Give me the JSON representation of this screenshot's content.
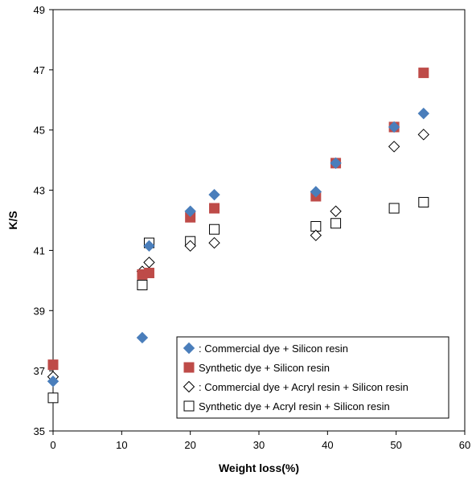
{
  "chart_data": {
    "type": "scatter",
    "xlabel": "Weight loss(%)",
    "ylabel": "K/S",
    "xlim": [
      0,
      60
    ],
    "ylim": [
      35,
      49
    ],
    "x_ticks": [
      "0",
      "10",
      "20",
      "30",
      "40",
      "50",
      "60"
    ],
    "y_ticks": [
      "35",
      "37",
      "39",
      "41",
      "43",
      "45",
      "47",
      "49"
    ],
    "grid": false,
    "legend_position": "bottom-right",
    "series": [
      {
        "name": ": Commercial dye + Silicon resin",
        "marker": "diamond-filled",
        "color": "#4a7ebb",
        "points": [
          [
            0,
            36.65
          ],
          [
            13,
            38.1
          ],
          [
            14,
            41.15
          ],
          [
            20,
            42.3
          ],
          [
            23.5,
            42.85
          ],
          [
            38.3,
            42.95
          ],
          [
            41.2,
            43.9
          ],
          [
            49.7,
            45.1
          ],
          [
            54,
            45.55
          ]
        ]
      },
      {
        "name": "Synthetic dye + Silicon resin",
        "marker": "square-filled",
        "color": "#be4b48",
        "points": [
          [
            0,
            37.2
          ],
          [
            13,
            40.2
          ],
          [
            14,
            40.25
          ],
          [
            20,
            42.1
          ],
          [
            23.5,
            42.4
          ],
          [
            38.3,
            42.8
          ],
          [
            41.2,
            43.9
          ],
          [
            49.7,
            45.1
          ],
          [
            54,
            46.9
          ]
        ]
      },
      {
        "name": ": Commercial dye + Acryl resin + Silicon resin",
        "marker": "diamond-open",
        "color": "#000000",
        "points": [
          [
            0,
            36.8
          ],
          [
            13,
            40.3
          ],
          [
            14,
            40.6
          ],
          [
            20,
            41.15
          ],
          [
            23.5,
            41.25
          ],
          [
            38.3,
            41.5
          ],
          [
            41.2,
            42.3
          ],
          [
            49.7,
            44.45
          ],
          [
            54,
            44.85
          ]
        ]
      },
      {
        "name": "Synthetic dye + Acryl resin + Silicon resin",
        "marker": "square-open",
        "color": "#000000",
        "points": [
          [
            0,
            36.1
          ],
          [
            13,
            39.85
          ],
          [
            14,
            41.25
          ],
          [
            20,
            41.3
          ],
          [
            23.5,
            41.7
          ],
          [
            38.3,
            41.8
          ],
          [
            41.2,
            41.9
          ],
          [
            49.7,
            42.4
          ],
          [
            54,
            42.6
          ]
        ]
      }
    ]
  }
}
